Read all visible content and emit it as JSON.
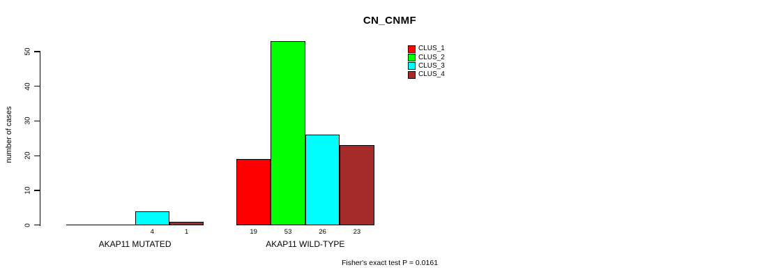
{
  "title": "CN_CNMF",
  "y_axis": {
    "label": "number of cases",
    "ticks": [
      0,
      10,
      20,
      30,
      40,
      50
    ]
  },
  "footer": "Fisher's exact test P = 0.0161",
  "colors": {
    "background": "#FFFFFF",
    "axis": "#000000",
    "clus_1": "#FF0000",
    "clus_2": "#00FF00",
    "clus_3": "#00FFFF",
    "clus_4": "#A52A2A"
  },
  "chart_data": {
    "type": "bar",
    "title": "CN_CNMF",
    "xlabel": "",
    "ylabel": "number of cases",
    "ylim": [
      0,
      53
    ],
    "yticks": [
      0,
      10,
      20,
      30,
      40,
      50
    ],
    "grid": false,
    "legend_position": "top-right",
    "legend_entries": [
      "CLUS_1",
      "CLUS_2",
      "CLUS_3",
      "CLUS_4"
    ],
    "categories": [
      "AKAP11 MUTATED",
      "AKAP11 WILD-TYPE"
    ],
    "series": [
      {
        "name": "CLUS_1",
        "color": "#FF0000",
        "values": [
          0,
          19
        ]
      },
      {
        "name": "CLUS_2",
        "color": "#00FF00",
        "values": [
          0,
          53
        ]
      },
      {
        "name": "CLUS_3",
        "color": "#00FFFF",
        "values": [
          4,
          26
        ]
      },
      {
        "name": "CLUS_4",
        "color": "#A52A2A",
        "values": [
          1,
          23
        ]
      }
    ],
    "bar_value_labels": {
      "AKAP11 MUTATED": [
        0,
        0,
        4,
        1
      ],
      "AKAP11 WILD-TYPE": [
        19,
        53,
        26,
        23
      ],
      "show_zero_labels": false
    },
    "annotation": "Fisher's exact test P = 0.0161"
  }
}
